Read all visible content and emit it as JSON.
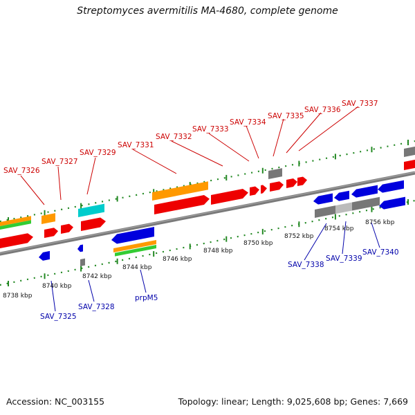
{
  "title": "Streptomyces avermitilis MA-4680, complete genome",
  "footer": {
    "accession": "Accession: NC_003155",
    "topology": "Topology: linear; Length: 9,025,608 bp; Genes: 7,669"
  },
  "colors": {
    "red": "#ee0000",
    "orange": "#ff9900",
    "green": "#33cc33",
    "blue": "#0000dd",
    "gray": "#777777",
    "light_gray": "#bbbbbb",
    "cyan": "#00cccc",
    "ruler_green": "#228822",
    "upper_label": "#cc0000",
    "lower_label": "#0000aa"
  },
  "kbp_ticks": [
    {
      "kbp": 8738,
      "label": "8738 kbp"
    },
    {
      "kbp": 8740,
      "label": "8740 kbp"
    },
    {
      "kbp": 8742,
      "label": "8742 kbp"
    },
    {
      "kbp": 8744,
      "label": "8744 kbp"
    },
    {
      "kbp": 8746,
      "label": "8746 kbp"
    },
    {
      "kbp": 8748,
      "label": "8748 kbp"
    },
    {
      "kbp": 8750,
      "label": "8750 kbp"
    },
    {
      "kbp": 8752,
      "label": "8752 kbp"
    },
    {
      "kbp": 8754,
      "label": "8754 kbp"
    },
    {
      "kbp": 8756,
      "label": "8756 kbp"
    }
  ],
  "upper_labels": [
    "SAV_7326",
    "SAV_7327",
    "SAV_7329",
    "SAV_7331",
    "SAV_7332",
    "SAV_7333",
    "SAV_7334",
    "SAV_7335",
    "SAV_7336",
    "SAV_7337"
  ],
  "lower_labels": [
    "SAV_7325",
    "SAV_7328",
    "prpM5",
    "SAV_7338",
    "SAV_7339",
    "SAV_7340"
  ]
}
